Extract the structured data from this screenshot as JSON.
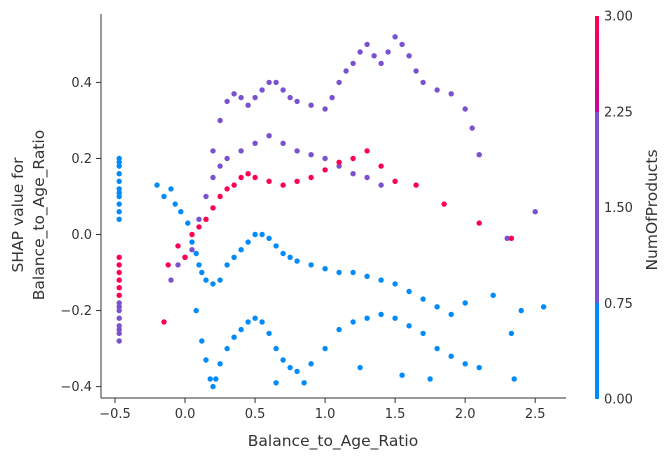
{
  "chart_data": {
    "type": "scatter",
    "xlabel": "Balance_to_Age_Ratio",
    "ylabel_lines": [
      "SHAP value for",
      "Balance_to_Age_Ratio"
    ],
    "xlim": [
      -0.6,
      2.72
    ],
    "ylim": [
      -0.43,
      0.58
    ],
    "xticks": [
      -0.5,
      0.0,
      0.5,
      1.0,
      1.5,
      2.0,
      2.5
    ],
    "xtick_labels": [
      "−0.5",
      "0.0",
      "0.5",
      "1.0",
      "1.5",
      "2.0",
      "2.5"
    ],
    "yticks": [
      -0.4,
      -0.2,
      0.0,
      0.2,
      0.4
    ],
    "ytick_labels": [
      "−0.4",
      "−0.2",
      "0.0",
      "0.2",
      "0.4"
    ],
    "grid": false,
    "colorbar": {
      "label": "NumOfProducts",
      "min": 0.0,
      "max": 3.0,
      "ticks": [
        0.0,
        0.75,
        1.5,
        2.25,
        3.0
      ],
      "tick_labels": [
        "0.00",
        "0.75",
        "1.50",
        "2.25",
        "3.00"
      ],
      "colors": {
        "1": "#008bfb",
        "2": "#7a52cf",
        "3": "#ff0052"
      }
    },
    "series": [
      {
        "color_value": 1,
        "points": [
          [
            -0.47,
            0.2
          ],
          [
            -0.47,
            0.18
          ],
          [
            -0.47,
            0.16
          ],
          [
            -0.47,
            0.14
          ],
          [
            -0.47,
            0.12
          ],
          [
            -0.47,
            0.1
          ],
          [
            -0.47,
            0.08
          ],
          [
            -0.47,
            0.06
          ],
          [
            -0.47,
            0.04
          ],
          [
            -0.47,
            0.19
          ],
          [
            -0.47,
            0.11
          ],
          [
            -0.2,
            0.13
          ],
          [
            -0.15,
            0.1
          ],
          [
            -0.1,
            0.12
          ],
          [
            -0.07,
            0.08
          ],
          [
            -0.03,
            0.06
          ],
          [
            0.02,
            0.03
          ],
          [
            0.05,
            -0.02
          ],
          [
            0.08,
            -0.05
          ],
          [
            0.1,
            -0.08
          ],
          [
            0.12,
            -0.1
          ],
          [
            0.15,
            -0.12
          ],
          [
            0.2,
            -0.13
          ],
          [
            0.25,
            -0.12
          ],
          [
            0.3,
            -0.08
          ],
          [
            0.35,
            -0.06
          ],
          [
            0.4,
            -0.04
          ],
          [
            0.45,
            -0.02
          ],
          [
            0.5,
            0.0
          ],
          [
            0.55,
            0.0
          ],
          [
            0.6,
            -0.01
          ],
          [
            0.65,
            -0.03
          ],
          [
            0.7,
            -0.05
          ],
          [
            0.75,
            -0.06
          ],
          [
            0.8,
            -0.07
          ],
          [
            0.9,
            -0.08
          ],
          [
            1.0,
            -0.09
          ],
          [
            1.1,
            -0.1
          ],
          [
            1.2,
            -0.1
          ],
          [
            1.3,
            -0.11
          ],
          [
            1.4,
            -0.12
          ],
          [
            1.5,
            -0.13
          ],
          [
            1.6,
            -0.15
          ],
          [
            1.7,
            -0.17
          ],
          [
            1.8,
            -0.19
          ],
          [
            1.9,
            -0.21
          ],
          [
            2.0,
            -0.18
          ],
          [
            2.2,
            -0.16
          ],
          [
            2.4,
            -0.2
          ],
          [
            2.56,
            -0.19
          ],
          [
            0.08,
            -0.2
          ],
          [
            0.12,
            -0.28
          ],
          [
            0.15,
            -0.33
          ],
          [
            0.18,
            -0.38
          ],
          [
            0.2,
            -0.4
          ],
          [
            0.22,
            -0.38
          ],
          [
            0.25,
            -0.34
          ],
          [
            0.3,
            -0.3
          ],
          [
            0.35,
            -0.27
          ],
          [
            0.4,
            -0.25
          ],
          [
            0.45,
            -0.23
          ],
          [
            0.5,
            -0.22
          ],
          [
            0.55,
            -0.23
          ],
          [
            0.6,
            -0.26
          ],
          [
            0.65,
            -0.3
          ],
          [
            0.7,
            -0.33
          ],
          [
            0.75,
            -0.35
          ],
          [
            0.8,
            -0.36
          ],
          [
            0.9,
            -0.34
          ],
          [
            1.0,
            -0.3
          ],
          [
            1.1,
            -0.25
          ],
          [
            1.2,
            -0.23
          ],
          [
            1.3,
            -0.22
          ],
          [
            1.4,
            -0.21
          ],
          [
            1.5,
            -0.22
          ],
          [
            1.6,
            -0.24
          ],
          [
            1.7,
            -0.26
          ],
          [
            1.8,
            -0.3
          ],
          [
            1.9,
            -0.32
          ],
          [
            2.0,
            -0.34
          ],
          [
            2.1,
            -0.35
          ],
          [
            2.33,
            -0.26
          ],
          [
            2.35,
            -0.38
          ],
          [
            1.75,
            -0.38
          ],
          [
            1.55,
            -0.37
          ],
          [
            1.25,
            -0.35
          ],
          [
            0.85,
            -0.39
          ],
          [
            0.65,
            -0.39
          ]
        ]
      },
      {
        "color_value": 2,
        "points": [
          [
            -0.47,
            -0.18
          ],
          [
            -0.47,
            -0.2
          ],
          [
            -0.47,
            -0.22
          ],
          [
            -0.47,
            -0.24
          ],
          [
            -0.47,
            -0.26
          ],
          [
            -0.47,
            -0.28
          ],
          [
            -0.47,
            -0.19
          ],
          [
            -0.47,
            -0.25
          ],
          [
            0.2,
            0.22
          ],
          [
            0.25,
            0.3
          ],
          [
            0.3,
            0.35
          ],
          [
            0.35,
            0.37
          ],
          [
            0.4,
            0.36
          ],
          [
            0.45,
            0.34
          ],
          [
            0.5,
            0.36
          ],
          [
            0.55,
            0.38
          ],
          [
            0.6,
            0.4
          ],
          [
            0.65,
            0.4
          ],
          [
            0.7,
            0.38
          ],
          [
            0.75,
            0.36
          ],
          [
            0.8,
            0.35
          ],
          [
            0.9,
            0.34
          ],
          [
            1.0,
            0.33
          ],
          [
            1.05,
            0.36
          ],
          [
            1.1,
            0.4
          ],
          [
            1.15,
            0.43
          ],
          [
            1.2,
            0.45
          ],
          [
            1.25,
            0.48
          ],
          [
            1.3,
            0.5
          ],
          [
            1.35,
            0.47
          ],
          [
            1.4,
            0.45
          ],
          [
            1.45,
            0.48
          ],
          [
            1.5,
            0.52
          ],
          [
            1.55,
            0.5
          ],
          [
            1.6,
            0.47
          ],
          [
            1.65,
            0.43
          ],
          [
            1.7,
            0.4
          ],
          [
            1.8,
            0.38
          ],
          [
            1.9,
            0.37
          ],
          [
            2.0,
            0.33
          ],
          [
            2.05,
            0.28
          ],
          [
            2.1,
            0.21
          ],
          [
            2.3,
            -0.01
          ],
          [
            2.5,
            0.06
          ],
          [
            0.1,
            0.04
          ],
          [
            0.15,
            0.1
          ],
          [
            0.2,
            0.15
          ],
          [
            0.25,
            0.18
          ],
          [
            0.3,
            0.2
          ],
          [
            0.4,
            0.22
          ],
          [
            0.5,
            0.24
          ],
          [
            0.6,
            0.26
          ],
          [
            0.7,
            0.24
          ],
          [
            0.8,
            0.22
          ],
          [
            0.9,
            0.21
          ],
          [
            1.0,
            0.2
          ],
          [
            1.1,
            0.18
          ],
          [
            1.2,
            0.16
          ],
          [
            1.3,
            0.15
          ],
          [
            1.4,
            0.13
          ],
          [
            -0.05,
            -0.08
          ],
          [
            0.0,
            -0.06
          ],
          [
            0.05,
            -0.04
          ],
          [
            -0.1,
            -0.12
          ]
        ]
      },
      {
        "color_value": 3,
        "points": [
          [
            -0.47,
            -0.06
          ],
          [
            -0.47,
            -0.08
          ],
          [
            -0.47,
            -0.1
          ],
          [
            -0.47,
            -0.12
          ],
          [
            -0.47,
            -0.14
          ],
          [
            -0.47,
            -0.16
          ],
          [
            0.05,
            0.0
          ],
          [
            0.1,
            0.02
          ],
          [
            0.15,
            0.04
          ],
          [
            0.2,
            0.07
          ],
          [
            0.25,
            0.1
          ],
          [
            0.3,
            0.12
          ],
          [
            0.35,
            0.13
          ],
          [
            0.4,
            0.15
          ],
          [
            0.45,
            0.16
          ],
          [
            0.5,
            0.15
          ],
          [
            0.6,
            0.14
          ],
          [
            0.7,
            0.13
          ],
          [
            0.8,
            0.14
          ],
          [
            0.9,
            0.15
          ],
          [
            1.0,
            0.17
          ],
          [
            1.1,
            0.19
          ],
          [
            1.2,
            0.2
          ],
          [
            1.3,
            0.22
          ],
          [
            1.4,
            0.18
          ],
          [
            1.5,
            0.14
          ],
          [
            1.65,
            0.13
          ],
          [
            1.85,
            0.08
          ],
          [
            2.1,
            0.03
          ],
          [
            2.33,
            -0.01
          ],
          [
            -0.15,
            -0.23
          ],
          [
            -0.12,
            -0.08
          ],
          [
            -0.05,
            -0.03
          ],
          [
            0.0,
            -0.06
          ]
        ]
      }
    ]
  }
}
